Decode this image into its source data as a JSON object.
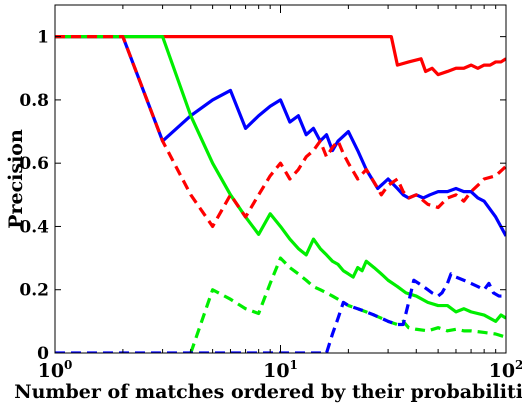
{
  "chart_data": {
    "type": "line",
    "title": "",
    "xlabel": "Number of matches ordered by their probabilities",
    "ylabel": "Precision",
    "xscale": "log",
    "xlim": [
      1,
      100
    ],
    "ylim": [
      0,
      1.1
    ],
    "grid": false,
    "legend": "none",
    "x_ticks": [
      {
        "value": 1,
        "base": "10",
        "exp": "0"
      },
      {
        "value": 10,
        "base": "10",
        "exp": "1"
      },
      {
        "value": 100,
        "base": "10",
        "exp": "2"
      }
    ],
    "y_ticks": [
      {
        "value": 0,
        "label": "0"
      },
      {
        "value": 0.2,
        "label": "0.2"
      },
      {
        "value": 0.4,
        "label": "0.4"
      },
      {
        "value": 0.6,
        "label": "0.6"
      },
      {
        "value": 0.8,
        "label": "0.8"
      },
      {
        "value": 1,
        "label": "1"
      }
    ],
    "series": [
      {
        "color": "#ff0000",
        "style": "solid",
        "points": [
          [
            1,
            1
          ],
          [
            2,
            1
          ],
          [
            5,
            1
          ],
          [
            10,
            1
          ],
          [
            20,
            1
          ],
          [
            31,
            1
          ],
          [
            33,
            0.91
          ],
          [
            37,
            0.92
          ],
          [
            42,
            0.93
          ],
          [
            44,
            0.89
          ],
          [
            47,
            0.9
          ],
          [
            50,
            0.88
          ],
          [
            55,
            0.89
          ],
          [
            60,
            0.9
          ],
          [
            65,
            0.9
          ],
          [
            70,
            0.91
          ],
          [
            75,
            0.9
          ],
          [
            80,
            0.91
          ],
          [
            85,
            0.91
          ],
          [
            90,
            0.92
          ],
          [
            95,
            0.92
          ],
          [
            100,
            0.93
          ]
        ]
      },
      {
        "color": "#0000ff",
        "style": "solid",
        "points": [
          [
            1,
            1
          ],
          [
            2,
            1
          ],
          [
            3,
            0.67
          ],
          [
            4,
            0.75
          ],
          [
            5,
            0.8
          ],
          [
            6,
            0.83
          ],
          [
            7,
            0.71
          ],
          [
            8,
            0.75
          ],
          [
            9,
            0.78
          ],
          [
            10,
            0.8
          ],
          [
            11,
            0.73
          ],
          [
            12,
            0.75
          ],
          [
            13,
            0.69
          ],
          [
            14,
            0.71
          ],
          [
            15,
            0.67
          ],
          [
            16,
            0.69
          ],
          [
            17,
            0.64
          ],
          [
            18,
            0.67
          ],
          [
            20,
            0.7
          ],
          [
            22,
            0.64
          ],
          [
            24,
            0.58
          ],
          [
            27,
            0.52
          ],
          [
            30,
            0.55
          ],
          [
            33,
            0.52
          ],
          [
            35,
            0.5
          ],
          [
            37,
            0.49
          ],
          [
            40,
            0.5
          ],
          [
            43,
            0.49
          ],
          [
            46,
            0.5
          ],
          [
            50,
            0.51
          ],
          [
            55,
            0.51
          ],
          [
            60,
            0.52
          ],
          [
            65,
            0.51
          ],
          [
            70,
            0.51
          ],
          [
            75,
            0.49
          ],
          [
            80,
            0.48
          ],
          [
            90,
            0.43
          ],
          [
            100,
            0.37
          ]
        ]
      },
      {
        "color": "#00ee00",
        "style": "solid",
        "points": [
          [
            1,
            1
          ],
          [
            2,
            1
          ],
          [
            3,
            1
          ],
          [
            4,
            0.75
          ],
          [
            5,
            0.6
          ],
          [
            6,
            0.5
          ],
          [
            7,
            0.43
          ],
          [
            8,
            0.375
          ],
          [
            9,
            0.44
          ],
          [
            10,
            0.4
          ],
          [
            11,
            0.36
          ],
          [
            12,
            0.33
          ],
          [
            13,
            0.31
          ],
          [
            14,
            0.36
          ],
          [
            15,
            0.33
          ],
          [
            16,
            0.31
          ],
          [
            17,
            0.29
          ],
          [
            18,
            0.28
          ],
          [
            19,
            0.26
          ],
          [
            20,
            0.25
          ],
          [
            21,
            0.24
          ],
          [
            22,
            0.27
          ],
          [
            23,
            0.26
          ],
          [
            24,
            0.29
          ],
          [
            26,
            0.27
          ],
          [
            28,
            0.25
          ],
          [
            30,
            0.23
          ],
          [
            33,
            0.21
          ],
          [
            36,
            0.19
          ],
          [
            40,
            0.18
          ],
          [
            45,
            0.16
          ],
          [
            50,
            0.15
          ],
          [
            55,
            0.15
          ],
          [
            60,
            0.13
          ],
          [
            65,
            0.14
          ],
          [
            70,
            0.13
          ],
          [
            80,
            0.12
          ],
          [
            90,
            0.1
          ],
          [
            95,
            0.12
          ],
          [
            100,
            0.11
          ]
        ]
      },
      {
        "color": "#ff0000",
        "style": "dashed",
        "points": [
          [
            1,
            1
          ],
          [
            2,
            1
          ],
          [
            3,
            0.67
          ],
          [
            4,
            0.5
          ],
          [
            5,
            0.4
          ],
          [
            6,
            0.5
          ],
          [
            7,
            0.43
          ],
          [
            8,
            0.5
          ],
          [
            9,
            0.56
          ],
          [
            10,
            0.6
          ],
          [
            11,
            0.55
          ],
          [
            12,
            0.58
          ],
          [
            13,
            0.62
          ],
          [
            14,
            0.64
          ],
          [
            15,
            0.67
          ],
          [
            16,
            0.62
          ],
          [
            17,
            0.65
          ],
          [
            18,
            0.67
          ],
          [
            19,
            0.63
          ],
          [
            20,
            0.6
          ],
          [
            22,
            0.55
          ],
          [
            24,
            0.58
          ],
          [
            26,
            0.54
          ],
          [
            28,
            0.5
          ],
          [
            30,
            0.53
          ],
          [
            33,
            0.55
          ],
          [
            35,
            0.51
          ],
          [
            37,
            0.49
          ],
          [
            40,
            0.5
          ],
          [
            45,
            0.47
          ],
          [
            50,
            0.46
          ],
          [
            55,
            0.49
          ],
          [
            60,
            0.5
          ],
          [
            65,
            0.48
          ],
          [
            70,
            0.51
          ],
          [
            75,
            0.53
          ],
          [
            80,
            0.55
          ],
          [
            90,
            0.56
          ],
          [
            100,
            0.59
          ]
        ]
      },
      {
        "color": "#00ee00",
        "style": "dashed",
        "points": [
          [
            4,
            0
          ],
          [
            5,
            0.2
          ],
          [
            6,
            0.17
          ],
          [
            7,
            0.14
          ],
          [
            8,
            0.125
          ],
          [
            9,
            0.22
          ],
          [
            10,
            0.3
          ],
          [
            11,
            0.27
          ],
          [
            12,
            0.25
          ],
          [
            13,
            0.23
          ],
          [
            14,
            0.21
          ],
          [
            15,
            0.2
          ],
          [
            16,
            0.19
          ],
          [
            17,
            0.18
          ],
          [
            18,
            0.17
          ],
          [
            19,
            0.16
          ],
          [
            20,
            0.15
          ],
          [
            22,
            0.14
          ],
          [
            24,
            0.13
          ],
          [
            26,
            0.12
          ],
          [
            28,
            0.11
          ],
          [
            30,
            0.1
          ],
          [
            33,
            0.09
          ],
          [
            35,
            0.1
          ],
          [
            37,
            0.08
          ],
          [
            40,
            0.075
          ],
          [
            45,
            0.07
          ],
          [
            50,
            0.08
          ],
          [
            55,
            0.07
          ],
          [
            60,
            0.075
          ],
          [
            65,
            0.07
          ],
          [
            70,
            0.07
          ],
          [
            80,
            0.065
          ],
          [
            90,
            0.06
          ],
          [
            100,
            0.05
          ]
        ]
      },
      {
        "color": "#0000ff",
        "style": "dashed",
        "points": [
          [
            1,
            0
          ],
          [
            16,
            0
          ],
          [
            17,
            0.06
          ],
          [
            18,
            0.11
          ],
          [
            19,
            0.16
          ],
          [
            20,
            0.15
          ],
          [
            22,
            0.14
          ],
          [
            24,
            0.13
          ],
          [
            26,
            0.12
          ],
          [
            28,
            0.11
          ],
          [
            30,
            0.1
          ],
          [
            33,
            0.09
          ],
          [
            35,
            0.09
          ],
          [
            37,
            0.16
          ],
          [
            39,
            0.23
          ],
          [
            41,
            0.22
          ],
          [
            43,
            0.21
          ],
          [
            45,
            0.2
          ],
          [
            47,
            0.19
          ],
          [
            50,
            0.18
          ],
          [
            52,
            0.19
          ],
          [
            55,
            0.22
          ],
          [
            57,
            0.25
          ],
          [
            60,
            0.24
          ],
          [
            65,
            0.23
          ],
          [
            70,
            0.22
          ],
          [
            75,
            0.21
          ],
          [
            80,
            0.2
          ],
          [
            84,
            0.22
          ],
          [
            88,
            0.19
          ],
          [
            93,
            0.18
          ],
          [
            100,
            0.18
          ]
        ]
      }
    ]
  }
}
